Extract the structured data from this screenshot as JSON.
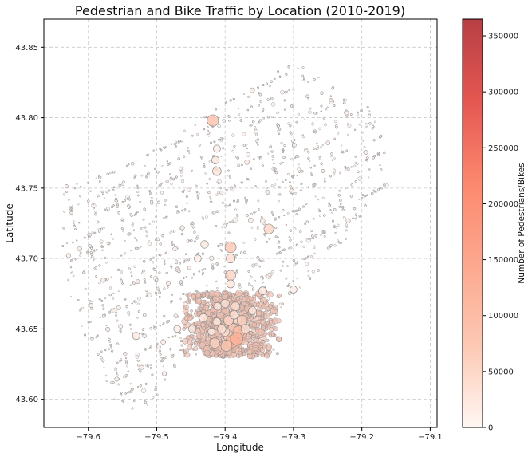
{
  "chart_data": {
    "type": "scatter",
    "title": "Pedestrian and Bike Traffic by Location (2010-2019)",
    "xlabel": "Longitude",
    "ylabel": "Latitude",
    "xlim": [
      -79.665,
      -79.09
    ],
    "ylim": [
      43.58,
      43.87
    ],
    "xticks": [
      -79.6,
      -79.5,
      -79.4,
      -79.3,
      -79.2,
      -79.1
    ],
    "xtick_labels": [
      "−79.6",
      "−79.5",
      "−79.4",
      "−79.3",
      "−79.2",
      "−79.1"
    ],
    "yticks": [
      43.6,
      43.65,
      43.7,
      43.75,
      43.8,
      43.85
    ],
    "ytick_labels": [
      "43.60",
      "43.65",
      "43.70",
      "43.75",
      "43.80",
      "43.85"
    ],
    "grid": true,
    "colorbar": {
      "label": "Number of Pedestrians/Bikes",
      "range": [
        0,
        365000
      ],
      "ticks": [
        0,
        50000,
        100000,
        150000,
        200000,
        250000,
        300000,
        350000
      ],
      "tick_labels": [
        "0",
        "50000",
        "100000",
        "150000",
        "200000",
        "250000",
        "300000",
        "350000"
      ],
      "colormap": "Reds",
      "colors": [
        "#fff5f0",
        "#fcbba1",
        "#fc9272",
        "#fb6a4a",
        "#de2d26",
        "#a50f15"
      ]
    },
    "points": [
      {
        "x": -79.418,
        "y": 43.798,
        "value": 65000
      },
      {
        "x": -79.392,
        "y": 43.708,
        "value": 60000
      },
      {
        "x": -79.392,
        "y": 43.7,
        "value": 30000
      },
      {
        "x": -79.392,
        "y": 43.688,
        "value": 45000
      },
      {
        "x": -79.392,
        "y": 43.682,
        "value": 20000
      },
      {
        "x": -79.412,
        "y": 43.762,
        "value": 25000
      },
      {
        "x": -79.414,
        "y": 43.77,
        "value": 15000
      },
      {
        "x": -79.412,
        "y": 43.778,
        "value": 12000
      },
      {
        "x": -79.336,
        "y": 43.721,
        "value": 40000
      },
      {
        "x": -79.385,
        "y": 43.666,
        "value": 28000
      },
      {
        "x": -79.383,
        "y": 43.657,
        "value": 35000
      },
      {
        "x": -79.388,
        "y": 43.65,
        "value": 55000
      },
      {
        "x": -79.38,
        "y": 43.648,
        "value": 70000
      },
      {
        "x": -79.395,
        "y": 43.645,
        "value": 50000
      },
      {
        "x": -79.39,
        "y": 43.641,
        "value": 85000
      },
      {
        "x": -79.4,
        "y": 43.648,
        "value": 30000
      },
      {
        "x": -79.375,
        "y": 43.656,
        "value": 45000
      },
      {
        "x": -79.383,
        "y": 43.643,
        "value": 90000
      },
      {
        "x": -79.395,
        "y": 43.656,
        "value": 40000
      },
      {
        "x": -79.405,
        "y": 43.65,
        "value": 25000
      },
      {
        "x": -79.412,
        "y": 43.655,
        "value": 20000
      },
      {
        "x": -79.37,
        "y": 43.65,
        "value": 30000
      },
      {
        "x": -79.387,
        "y": 43.66,
        "value": 25000
      },
      {
        "x": -79.432,
        "y": 43.658,
        "value": 22000
      },
      {
        "x": -79.448,
        "y": 43.65,
        "value": 15000
      },
      {
        "x": -79.42,
        "y": 43.648,
        "value": 12000
      },
      {
        "x": -79.36,
        "y": 43.663,
        "value": 18000
      },
      {
        "x": -79.345,
        "y": 43.677,
        "value": 20000
      },
      {
        "x": -79.4,
        "y": 43.668,
        "value": 25000
      },
      {
        "x": -79.411,
        "y": 43.666,
        "value": 18000
      },
      {
        "x": -79.43,
        "y": 43.71,
        "value": 15000
      },
      {
        "x": -79.44,
        "y": 43.7,
        "value": 12000
      },
      {
        "x": -79.3,
        "y": 43.678,
        "value": 12000
      },
      {
        "x": -79.53,
        "y": 43.645,
        "value": 14000
      },
      {
        "x": -79.47,
        "y": 43.65,
        "value": 11000
      },
      {
        "x": -79.415,
        "y": 43.64,
        "value": 45000
      },
      {
        "x": -79.398,
        "y": 43.638,
        "value": 60000
      }
    ]
  }
}
